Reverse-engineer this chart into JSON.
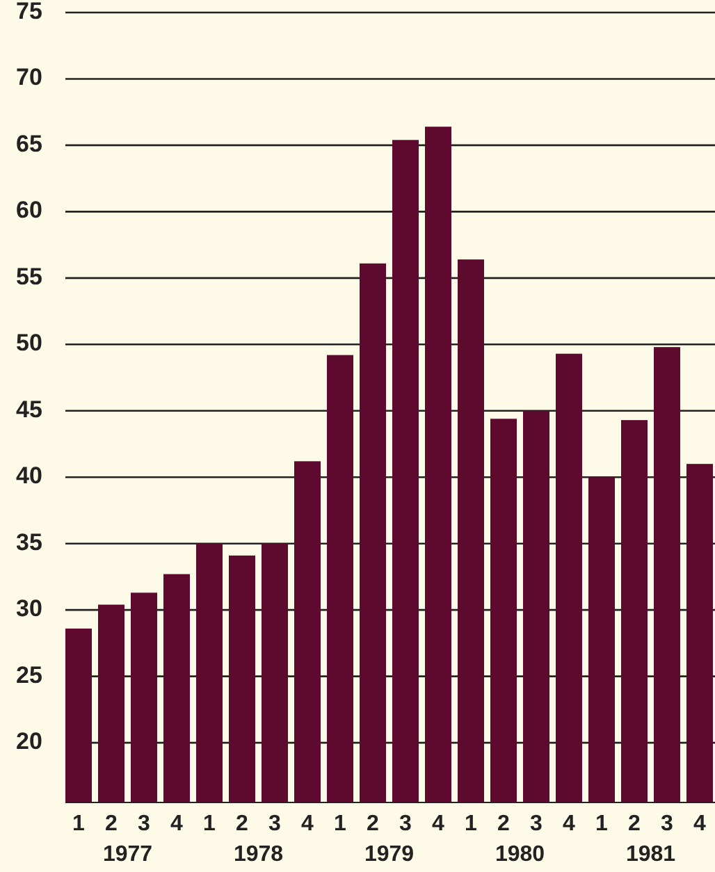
{
  "chart_data": {
    "type": "bar",
    "categories": [
      "1",
      "2",
      "3",
      "4",
      "1",
      "2",
      "3",
      "4",
      "1",
      "2",
      "3",
      "4",
      "1",
      "2",
      "3",
      "4",
      "1",
      "2",
      "3",
      "4"
    ],
    "values": [
      28.6,
      30.4,
      31.3,
      32.7,
      35.0,
      34.1,
      35.0,
      41.2,
      49.2,
      56.1,
      65.4,
      66.4,
      56.4,
      44.4,
      45.0,
      49.3,
      40.0,
      44.3,
      49.8,
      41.0
    ],
    "color": "#5e0a2e",
    "ylim": [
      15.5,
      75
    ],
    "yticks": [
      20,
      25,
      30,
      35,
      40,
      45,
      50,
      55,
      60,
      65,
      70,
      75
    ],
    "grid": "y",
    "annotations": [
      "1977",
      "1978",
      "1979",
      "1980",
      "1981"
    ]
  }
}
